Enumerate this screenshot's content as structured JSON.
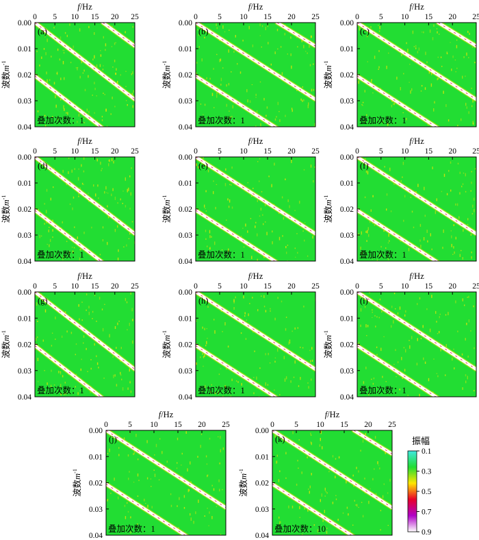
{
  "figure": {
    "xlabel_var": "f",
    "xlabel_unit": "/Hz",
    "ylabel": "波数",
    "ylabel_unit": "m",
    "ylabel_exp": "-1",
    "stack_label": "叠加次数：",
    "x_ticks": [
      "0",
      "5",
      "10",
      "15",
      "20",
      "25"
    ],
    "y_ticks": [
      "0.00",
      "0.01",
      "0.02",
      "0.03",
      "0.04"
    ],
    "colors": {
      "background": "#22dd33",
      "noise": "#ffe600",
      "highlight": "#ffffff",
      "peak": "#e8002a"
    }
  },
  "colorbar": {
    "title": "振幅",
    "tick_labels": [
      "0.1",
      "0.3",
      "0.5",
      "0.7",
      "0.9"
    ],
    "stops": [
      "#40e8e0",
      "#22dd33",
      "#ffe600",
      "#e8002a",
      "#b000c8",
      "#ffffff"
    ]
  },
  "chart_data": [
    {
      "type": "heatmap",
      "panel": "(a)",
      "stack_count": "1",
      "xlim": [
        0,
        25
      ],
      "ylim": [
        0,
        0.04
      ],
      "ridges": [
        {
          "fundamental": true,
          "x": [
            0,
            25
          ],
          "y": [
            0,
            0.0295
          ]
        },
        {
          "x": [
            17,
            25
          ],
          "y": [
            0,
            0.009
          ]
        }
      ]
    },
    {
      "type": "heatmap",
      "panel": "(b)",
      "stack_count": "1",
      "xlim": [
        0,
        25
      ],
      "ylim": [
        0,
        0.04
      ],
      "ridges": [
        {
          "fundamental": true,
          "x": [
            0,
            25
          ],
          "y": [
            0,
            0.0295
          ]
        },
        {
          "x": [
            17,
            25
          ],
          "y": [
            0,
            0.009
          ]
        }
      ]
    },
    {
      "type": "heatmap",
      "panel": "(c)",
      "stack_count": "1",
      "xlim": [
        0,
        25
      ],
      "ylim": [
        0,
        0.04
      ],
      "ridges": [
        {
          "fundamental": true,
          "x": [
            0,
            25
          ],
          "y": [
            0,
            0.0295
          ]
        },
        {
          "x": [
            17,
            25
          ],
          "y": [
            0,
            0.009
          ]
        }
      ]
    },
    {
      "type": "heatmap",
      "panel": "(d)",
      "stack_count": "1",
      "xlim": [
        0,
        25
      ],
      "ylim": [
        0,
        0.04
      ],
      "ridges": [
        {
          "fundamental": true,
          "x": [
            0,
            25
          ],
          "y": [
            0,
            0.0295
          ]
        }
      ]
    },
    {
      "type": "heatmap",
      "panel": "(e)",
      "stack_count": "1",
      "xlim": [
        0,
        25
      ],
      "ylim": [
        0,
        0.04
      ],
      "ridges": [
        {
          "fundamental": true,
          "x": [
            0,
            25
          ],
          "y": [
            0,
            0.0295
          ]
        }
      ]
    },
    {
      "type": "heatmap",
      "panel": "(f)",
      "stack_count": "1",
      "xlim": [
        0,
        25
      ],
      "ylim": [
        0,
        0.04
      ],
      "ridges": [
        {
          "fundamental": true,
          "x": [
            0,
            25
          ],
          "y": [
            0,
            0.0295
          ]
        }
      ]
    },
    {
      "type": "heatmap",
      "panel": "(g)",
      "stack_count": "1",
      "xlim": [
        0,
        25
      ],
      "ylim": [
        0,
        0.04
      ],
      "ridges": [
        {
          "fundamental": true,
          "x": [
            0,
            25
          ],
          "y": [
            0,
            0.0295
          ]
        }
      ]
    },
    {
      "type": "heatmap",
      "panel": "(h)",
      "stack_count": "1",
      "xlim": [
        0,
        25
      ],
      "ylim": [
        0,
        0.04
      ],
      "ridges": [
        {
          "fundamental": true,
          "x": [
            0,
            25
          ],
          "y": [
            0,
            0.0295
          ]
        }
      ]
    },
    {
      "type": "heatmap",
      "panel": "(i)",
      "stack_count": "1",
      "xlim": [
        0,
        25
      ],
      "ylim": [
        0,
        0.04
      ],
      "ridges": [
        {
          "fundamental": true,
          "x": [
            0,
            25
          ],
          "y": [
            0,
            0.0295
          ]
        }
      ]
    },
    {
      "type": "heatmap",
      "panel": "(j)",
      "stack_count": "1",
      "xlim": [
        0,
        25
      ],
      "ylim": [
        0,
        0.04
      ],
      "ridges": [
        {
          "fundamental": true,
          "x": [
            0,
            25
          ],
          "y": [
            0,
            0.0295
          ]
        }
      ]
    },
    {
      "type": "heatmap",
      "panel": "(k)",
      "stack_count": "10",
      "xlim": [
        0,
        25
      ],
      "ylim": [
        0,
        0.04
      ],
      "ridges": [
        {
          "fundamental": true,
          "x": [
            0,
            25
          ],
          "y": [
            0,
            0.0295
          ]
        },
        {
          "x": [
            17,
            25
          ],
          "y": [
            0,
            0.009
          ]
        }
      ]
    }
  ]
}
